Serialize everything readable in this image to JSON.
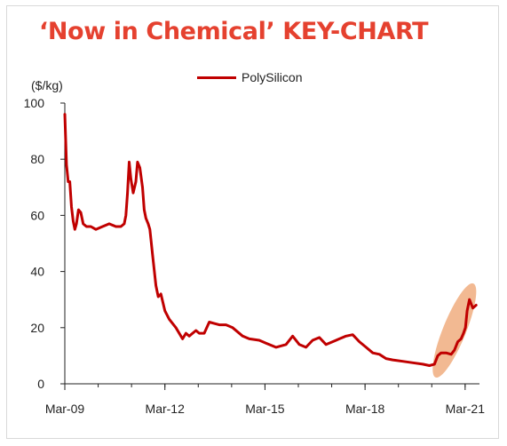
{
  "title": "‘Now in Chemical’ KEY-CHART",
  "chart_data": {
    "type": "line",
    "title": "",
    "ylabel": "($/kg)",
    "xlabel": "",
    "ylim": [
      0,
      100
    ],
    "yticks": [
      0,
      20,
      40,
      60,
      80,
      100
    ],
    "xticks": [
      "Mar-09",
      "Mar-12",
      "Mar-15",
      "Mar-18",
      "Mar-21"
    ],
    "xlim": [
      2009.17,
      2021.6
    ],
    "grid": false,
    "legend": "top-center",
    "highlight": "ellipse around the 2020–2021 surge",
    "series": [
      {
        "name": "PolySilicon",
        "color": "#c00000",
        "x": [
          2009.17,
          2009.22,
          2009.27,
          2009.32,
          2009.37,
          2009.42,
          2009.47,
          2009.52,
          2009.58,
          2009.65,
          2009.72,
          2009.82,
          2009.95,
          2010.1,
          2010.3,
          2010.5,
          2010.7,
          2010.85,
          2010.95,
          2011.0,
          2011.05,
          2011.1,
          2011.15,
          2011.22,
          2011.3,
          2011.35,
          2011.42,
          2011.5,
          2011.55,
          2011.6,
          2011.67,
          2011.72,
          2011.8,
          2011.9,
          2011.97,
          2012.05,
          2012.17,
          2012.3,
          2012.5,
          2012.7,
          2012.8,
          2012.9,
          2013.0,
          2013.1,
          2013.2,
          2013.35,
          2013.5,
          2013.65,
          2013.8,
          2014.0,
          2014.2,
          2014.5,
          2014.7,
          2015.0,
          2015.2,
          2015.5,
          2015.8,
          2016.0,
          2016.2,
          2016.4,
          2016.6,
          2016.8,
          2017.0,
          2017.2,
          2017.4,
          2017.6,
          2017.8,
          2018.0,
          2018.2,
          2018.4,
          2018.6,
          2018.8,
          2019.0,
          2019.3,
          2019.6,
          2019.9,
          2020.1,
          2020.25,
          2020.35,
          2020.45,
          2020.6,
          2020.75,
          2020.85,
          2020.95,
          2021.05,
          2021.12,
          2021.18,
          2021.23,
          2021.3,
          2021.4,
          2021.5
        ],
        "values": [
          96,
          78,
          72,
          72,
          63,
          58,
          55,
          57,
          62,
          61,
          57,
          56,
          56,
          55,
          56,
          57,
          56,
          56,
          57,
          60,
          68,
          79,
          73,
          68,
          72,
          79,
          77,
          70,
          62,
          59,
          57,
          55,
          46,
          35,
          31,
          32,
          26,
          23,
          20,
          16,
          18,
          17,
          18,
          19,
          18,
          18,
          22,
          21.5,
          21,
          21,
          20,
          17,
          16,
          15.5,
          14.5,
          13,
          14,
          17,
          14,
          13,
          15.5,
          16.5,
          14,
          15,
          16,
          17,
          17.5,
          15,
          13,
          11,
          10.5,
          9,
          8.5,
          8,
          7.5,
          7,
          6.5,
          7,
          10,
          11,
          11,
          10.5,
          12,
          15,
          16,
          18,
          20,
          26,
          30,
          27,
          28
        ]
      }
    ]
  }
}
